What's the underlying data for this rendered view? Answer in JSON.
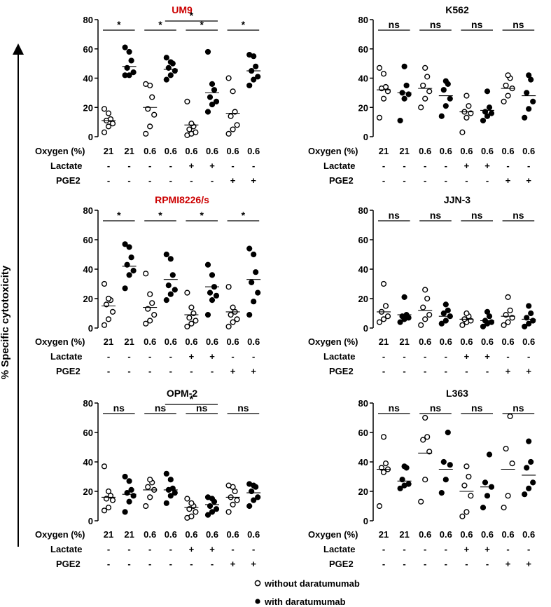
{
  "figure": {
    "y_axis_title": "% Specific cytotoxicity",
    "row_labels": [
      "Oxygen (%)",
      "Lactate",
      "PGE2"
    ],
    "conditions": {
      "oxygen": [
        "21",
        "21",
        "0.6",
        "0.6",
        "0.6",
        "0.6",
        "0.6",
        "0.6"
      ],
      "lactate": [
        "-",
        "-",
        "-",
        "-",
        "+",
        "+",
        "-",
        "-"
      ],
      "pge2": [
        "-",
        "-",
        "-",
        "-",
        "-",
        "-",
        "+",
        "+"
      ]
    },
    "legend": {
      "without": "without daratumumab",
      "with": "with daratumumab"
    },
    "colors": {
      "highlight_title": "#cc0000",
      "normal_title": "#000000",
      "ink": "#000000"
    }
  },
  "chart_data": [
    {
      "type": "scatter",
      "title": "UM9",
      "title_color": "#cc0000",
      "ylim": [
        0,
        80
      ],
      "yticks": [
        "0",
        "20",
        "40",
        "60",
        "80"
      ],
      "groups": [
        {
          "filled": false,
          "values": [
            3,
            7,
            9,
            11,
            12,
            16,
            19
          ],
          "mean": 11
        },
        {
          "filled": true,
          "values": [
            42,
            42,
            44,
            47,
            52,
            58,
            61
          ],
          "mean": 48
        },
        {
          "filled": false,
          "values": [
            2,
            7,
            15,
            19,
            27,
            35,
            36
          ],
          "mean": 20
        },
        {
          "filled": true,
          "values": [
            39,
            42,
            45,
            47,
            50,
            51,
            54
          ],
          "mean": 46
        },
        {
          "filled": false,
          "values": [
            1,
            2,
            3,
            5,
            7,
            9,
            24
          ],
          "mean": 8
        },
        {
          "filled": true,
          "values": [
            17,
            22,
            24,
            27,
            32,
            36,
            58
          ],
          "mean": 30
        },
        {
          "filled": false,
          "values": [
            2,
            5,
            8,
            14,
            17,
            31,
            40
          ],
          "mean": 16
        },
        {
          "filled": true,
          "values": [
            35,
            39,
            41,
            45,
            48,
            55,
            56
          ],
          "mean": 45
        }
      ],
      "comparisons": [
        {
          "pair": [
            1,
            2
          ],
          "label": "*",
          "tier": 0
        },
        {
          "pair": [
            3,
            4
          ],
          "label": "*",
          "tier": 0
        },
        {
          "pair": [
            5,
            6
          ],
          "label": "*",
          "tier": 0
        },
        {
          "pair": [
            7,
            8
          ],
          "label": "*",
          "tier": 0
        },
        {
          "pair": [
            4,
            6
          ],
          "label": "*",
          "tier": 1
        }
      ]
    },
    {
      "type": "scatter",
      "title": "K562",
      "title_color": "#000000",
      "ylim": [
        0,
        80
      ],
      "yticks": [
        "0",
        "20",
        "40",
        "60",
        "80"
      ],
      "groups": [
        {
          "filled": false,
          "values": [
            13,
            26,
            31,
            33,
            34,
            43,
            47
          ],
          "mean": 32
        },
        {
          "filled": true,
          "values": [
            11,
            26,
            29,
            30,
            35,
            48
          ],
          "mean": 30
        },
        {
          "filled": false,
          "values": [
            20,
            26,
            31,
            35,
            41,
            47
          ],
          "mean": 33
        },
        {
          "filled": true,
          "values": [
            14,
            21,
            26,
            32,
            36,
            38
          ],
          "mean": 28
        },
        {
          "filled": false,
          "values": [
            3,
            13,
            16,
            17,
            21,
            28
          ],
          "mean": 17
        },
        {
          "filled": true,
          "values": [
            11,
            14,
            16,
            17,
            20,
            31
          ],
          "mean": 18
        },
        {
          "filled": false,
          "values": [
            24,
            28,
            33,
            35,
            40,
            42
          ],
          "mean": 33
        },
        {
          "filled": true,
          "values": [
            13,
            19,
            24,
            30,
            39,
            42
          ],
          "mean": 28
        }
      ],
      "comparisons": [
        {
          "pair": [
            1,
            2
          ],
          "label": "ns",
          "tier": 0
        },
        {
          "pair": [
            3,
            4
          ],
          "label": "ns",
          "tier": 0
        },
        {
          "pair": [
            5,
            6
          ],
          "label": "ns",
          "tier": 0
        },
        {
          "pair": [
            7,
            8
          ],
          "label": "ns",
          "tier": 0
        }
      ]
    },
    {
      "type": "scatter",
      "title": "RPMI8226/s",
      "title_color": "#cc0000",
      "ylim": [
        0,
        80
      ],
      "yticks": [
        "0",
        "20",
        "40",
        "60",
        "80"
      ],
      "groups": [
        {
          "filled": false,
          "values": [
            2,
            6,
            11,
            16,
            19,
            20,
            30
          ],
          "mean": 15
        },
        {
          "filled": true,
          "values": [
            27,
            36,
            39,
            43,
            48,
            55,
            57
          ],
          "mean": 42
        },
        {
          "filled": false,
          "values": [
            3,
            5,
            9,
            13,
            17,
            23,
            37
          ],
          "mean": 14
        },
        {
          "filled": true,
          "values": [
            19,
            23,
            26,
            29,
            36,
            47,
            50
          ],
          "mean": 33
        },
        {
          "filled": false,
          "values": [
            1,
            3,
            5,
            7,
            10,
            14,
            24
          ],
          "mean": 9
        },
        {
          "filled": true,
          "values": [
            9,
            19,
            22,
            24,
            28,
            36,
            43
          ],
          "mean": 28
        },
        {
          "filled": false,
          "values": [
            1,
            4,
            6,
            9,
            11,
            14,
            28
          ],
          "mean": 11
        },
        {
          "filled": true,
          "values": [
            9,
            18,
            24,
            31,
            38,
            50,
            54
          ],
          "mean": 33
        }
      ],
      "comparisons": [
        {
          "pair": [
            1,
            2
          ],
          "label": "*",
          "tier": 0
        },
        {
          "pair": [
            3,
            4
          ],
          "label": "*",
          "tier": 0
        },
        {
          "pair": [
            5,
            6
          ],
          "label": "*",
          "tier": 0
        },
        {
          "pair": [
            7,
            8
          ],
          "label": "*",
          "tier": 0
        }
      ]
    },
    {
      "type": "scatter",
      "title": "JJN-3",
      "title_color": "#000000",
      "ylim": [
        0,
        80
      ],
      "yticks": [
        "0",
        "20",
        "40",
        "60",
        "80"
      ],
      "groups": [
        {
          "filled": false,
          "values": [
            4,
            6,
            8,
            11,
            15,
            30
          ],
          "mean": 11
        },
        {
          "filled": true,
          "values": [
            4,
            6,
            7,
            8,
            9,
            21
          ],
          "mean": 9
        },
        {
          "filled": false,
          "values": [
            2,
            6,
            9,
            14,
            20,
            26
          ],
          "mean": 12
        },
        {
          "filled": true,
          "values": [
            3,
            5,
            8,
            10,
            12,
            16
          ],
          "mean": 8
        },
        {
          "filled": false,
          "values": [
            2,
            4,
            5,
            6,
            8,
            10
          ],
          "mean": 6
        },
        {
          "filled": true,
          "values": [
            1,
            3,
            4,
            5,
            8,
            11
          ],
          "mean": 5
        },
        {
          "filled": false,
          "values": [
            2,
            4,
            7,
            9,
            12,
            21
          ],
          "mean": 8
        },
        {
          "filled": true,
          "values": [
            1,
            3,
            5,
            7,
            10,
            15
          ],
          "mean": 6
        }
      ],
      "comparisons": [
        {
          "pair": [
            1,
            2
          ],
          "label": "ns",
          "tier": 0
        },
        {
          "pair": [
            3,
            4
          ],
          "label": "ns",
          "tier": 0
        },
        {
          "pair": [
            5,
            6
          ],
          "label": "ns",
          "tier": 0
        },
        {
          "pair": [
            7,
            8
          ],
          "label": "ns",
          "tier": 0
        }
      ]
    },
    {
      "type": "scatter",
      "title": "OPM-2",
      "title_color": "#000000",
      "ylim": [
        0,
        80
      ],
      "yticks": [
        "0",
        "20",
        "40",
        "60",
        "80"
      ],
      "groups": [
        {
          "filled": false,
          "values": [
            7,
            9,
            14,
            15,
            17,
            20,
            37
          ],
          "mean": 16
        },
        {
          "filled": true,
          "values": [
            6,
            13,
            17,
            19,
            21,
            27,
            30
          ],
          "mean": 18
        },
        {
          "filled": false,
          "values": [
            10,
            16,
            21,
            23,
            26,
            28
          ],
          "mean": 21
        },
        {
          "filled": true,
          "values": [
            12,
            17,
            19,
            21,
            22,
            28,
            32
          ],
          "mean": 21
        },
        {
          "filled": false,
          "values": [
            2,
            3,
            6,
            8,
            10,
            12,
            15
          ],
          "mean": 9
        },
        {
          "filled": true,
          "values": [
            4,
            6,
            8,
            10,
            13,
            15,
            16
          ],
          "mean": 11
        },
        {
          "filled": false,
          "values": [
            6,
            11,
            14,
            16,
            20,
            23,
            24
          ],
          "mean": 16
        },
        {
          "filled": true,
          "values": [
            10,
            14,
            16,
            20,
            23,
            24,
            25
          ],
          "mean": 19
        }
      ],
      "comparisons": [
        {
          "pair": [
            1,
            2
          ],
          "label": "ns",
          "tier": 0
        },
        {
          "pair": [
            3,
            4
          ],
          "label": "ns",
          "tier": 0
        },
        {
          "pair": [
            5,
            6
          ],
          "label": "ns",
          "tier": 0
        },
        {
          "pair": [
            7,
            8
          ],
          "label": "ns",
          "tier": 0
        },
        {
          "pair": [
            4,
            6
          ],
          "label": "*",
          "tier": 1
        }
      ]
    },
    {
      "type": "scatter",
      "title": "L363",
      "title_color": "#000000",
      "ylim": [
        0,
        80
      ],
      "yticks": [
        "0",
        "20",
        "40",
        "60",
        "80"
      ],
      "groups": [
        {
          "filled": false,
          "values": [
            10,
            33,
            35,
            36,
            39,
            57
          ],
          "mean": 35
        },
        {
          "filled": true,
          "values": [
            22,
            24,
            25,
            28,
            36,
            37
          ],
          "mean": 27
        },
        {
          "filled": false,
          "values": [
            13,
            28,
            47,
            55,
            57,
            70
          ],
          "mean": 46
        },
        {
          "filled": true,
          "values": [
            19,
            28,
            38,
            40,
            60
          ],
          "mean": 35
        },
        {
          "filled": false,
          "values": [
            3,
            6,
            17,
            24,
            30,
            37
          ],
          "mean": 20
        },
        {
          "filled": true,
          "values": [
            9,
            17,
            23,
            26,
            45
          ],
          "mean": 23
        },
        {
          "filled": false,
          "values": [
            9,
            17,
            39,
            49,
            71
          ],
          "mean": 35
        },
        {
          "filled": true,
          "values": [
            18,
            22,
            26,
            36,
            40,
            54
          ],
          "mean": 31
        }
      ],
      "comparisons": [
        {
          "pair": [
            1,
            2
          ],
          "label": "ns",
          "tier": 0
        },
        {
          "pair": [
            3,
            4
          ],
          "label": "ns",
          "tier": 0
        },
        {
          "pair": [
            5,
            6
          ],
          "label": "ns",
          "tier": 0
        },
        {
          "pair": [
            7,
            8
          ],
          "label": "ns",
          "tier": 0
        }
      ]
    }
  ]
}
